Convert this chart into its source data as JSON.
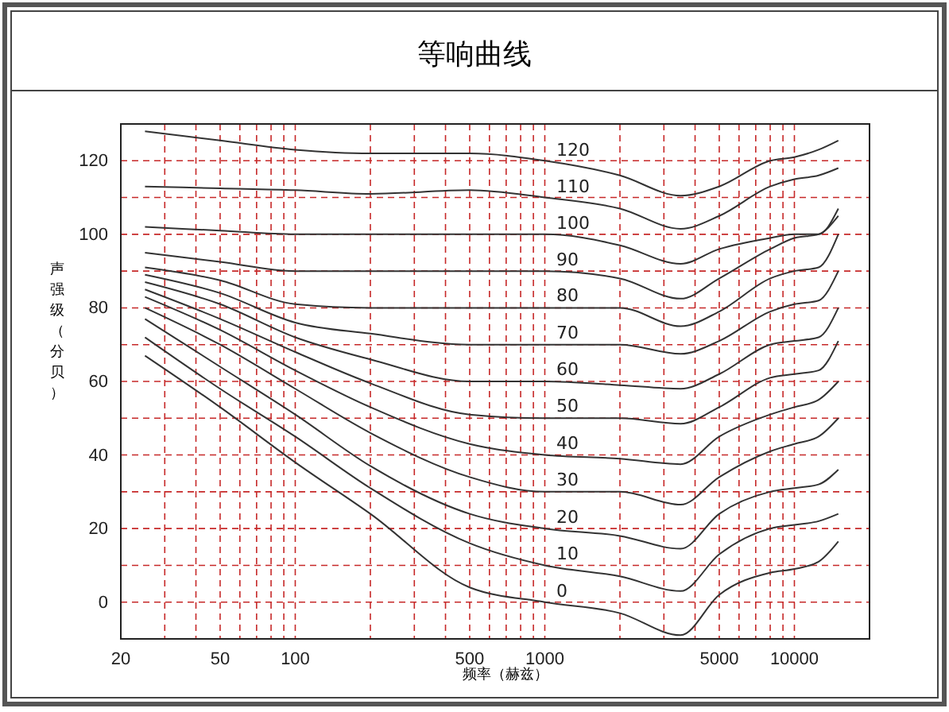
{
  "chart_data": {
    "type": "line",
    "title": "等响曲线",
    "xlabel": "频率（赫兹）",
    "ylabel": "声强级（分贝）",
    "log": "x",
    "grid": true,
    "legend": false,
    "marker": "none",
    "line_style": "solid",
    "x": [
      25,
      50,
      100,
      200,
      500,
      1000,
      2000,
      3500,
      5000,
      8000,
      10000,
      12500,
      15000
    ],
    "xlim": [
      20,
      20000
    ],
    "xticks": [
      20,
      {
        "value": 30,
        "label": null
      },
      {
        "value": 40,
        "label": null
      },
      50,
      {
        "value": 60,
        "label": null
      },
      {
        "value": 70,
        "label": null
      },
      {
        "value": 80,
        "label": null
      },
      {
        "value": 90,
        "label": null
      },
      100,
      {
        "value": 200,
        "label": null
      },
      {
        "value": 300,
        "label": null
      },
      {
        "value": 400,
        "label": null
      },
      500,
      {
        "value": 600,
        "label": null
      },
      {
        "value": 700,
        "label": null
      },
      {
        "value": 800,
        "label": null
      },
      {
        "value": 900,
        "label": null
      },
      1000,
      {
        "value": 2000,
        "label": null
      },
      {
        "value": 3000,
        "label": null
      },
      {
        "value": 4000,
        "label": null
      },
      5000,
      {
        "value": 6000,
        "label": null
      },
      {
        "value": 7000,
        "label": null
      },
      {
        "value": 8000,
        "label": null
      },
      {
        "value": 9000,
        "label": null
      },
      10000
    ],
    "ylim": [
      -10,
      130
    ],
    "yticks": [
      0,
      {
        "value": 10,
        "label": null
      },
      20,
      {
        "value": 30,
        "label": null
      },
      40,
      {
        "value": 50,
        "label": null
      },
      60,
      {
        "value": 70,
        "label": null
      },
      80,
      {
        "value": 90,
        "label": null
      },
      100,
      {
        "value": 110,
        "label": null
      },
      120
    ],
    "series": [
      {
        "name": "120",
        "color": "#333333",
        "values": [
          128,
          125.5,
          123,
          122,
          122,
          120,
          116,
          110.5,
          113,
          120,
          121,
          123,
          125.5
        ]
      },
      {
        "name": "110",
        "color": "#333333",
        "values": [
          113,
          112.5,
          112,
          111,
          112,
          110,
          107,
          101.5,
          105,
          113,
          115,
          116,
          118
        ]
      },
      {
        "name": "100",
        "color": "#333333",
        "values": [
          102,
          101,
          100,
          100,
          100,
          100,
          97,
          92,
          96,
          99,
          100,
          100,
          107
        ]
      },
      {
        "name": "90",
        "color": "#333333",
        "values": [
          95,
          92.5,
          90,
          90,
          90,
          90,
          88,
          82.5,
          88,
          96,
          99,
          100,
          105
        ]
      },
      {
        "name": "80",
        "color": "#333333",
        "values": [
          91,
          87.5,
          81,
          80,
          80,
          80,
          80,
          75,
          79,
          88,
          90,
          91,
          100
        ]
      },
      {
        "name": "70",
        "color": "#333333",
        "values": [
          89,
          84,
          76,
          73,
          70,
          70,
          70,
          67.5,
          71,
          79,
          81,
          82,
          90
        ]
      },
      {
        "name": "60",
        "color": "#333333",
        "values": [
          87,
          81,
          72,
          66,
          60,
          60,
          59,
          58,
          62,
          70,
          71,
          72,
          80
        ]
      },
      {
        "name": "50",
        "color": "#333333",
        "values": [
          85,
          77,
          68,
          59.5,
          51,
          50,
          50,
          48.5,
          53,
          61,
          62,
          63,
          71
        ]
      },
      {
        "name": "40",
        "color": "#333333",
        "values": [
          83,
          74,
          63,
          53,
          43,
          40,
          39,
          37.5,
          45,
          51,
          53,
          55,
          60
        ]
      },
      {
        "name": "30",
        "color": "#333333",
        "values": [
          80,
          70,
          58,
          46,
          34,
          30,
          30,
          26.5,
          34,
          41,
          43,
          45,
          50
        ]
      },
      {
        "name": "20",
        "color": "#333333",
        "values": [
          77,
          64,
          51,
          37,
          24,
          20,
          18,
          14.5,
          24,
          30,
          31,
          32,
          36
        ]
      },
      {
        "name": "10",
        "color": "#333333",
        "values": [
          72,
          58,
          45,
          31,
          16,
          10,
          7,
          3,
          13,
          20,
          21,
          22,
          24
        ]
      },
      {
        "name": "0",
        "color": "#333333",
        "values": [
          67,
          53,
          38,
          24,
          4,
          0,
          -3,
          -9,
          2,
          8,
          9,
          11,
          16.5
        ]
      }
    ]
  }
}
